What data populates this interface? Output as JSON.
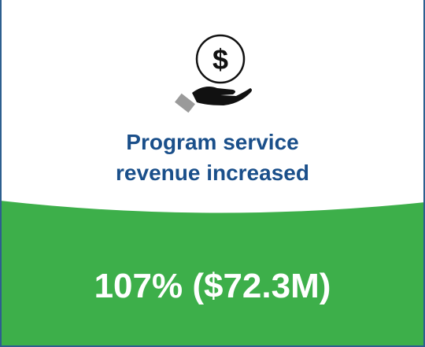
{
  "card": {
    "heading_lines": [
      "Program service",
      "revenue increased"
    ],
    "stat": "107% ($72.3M)"
  }
}
